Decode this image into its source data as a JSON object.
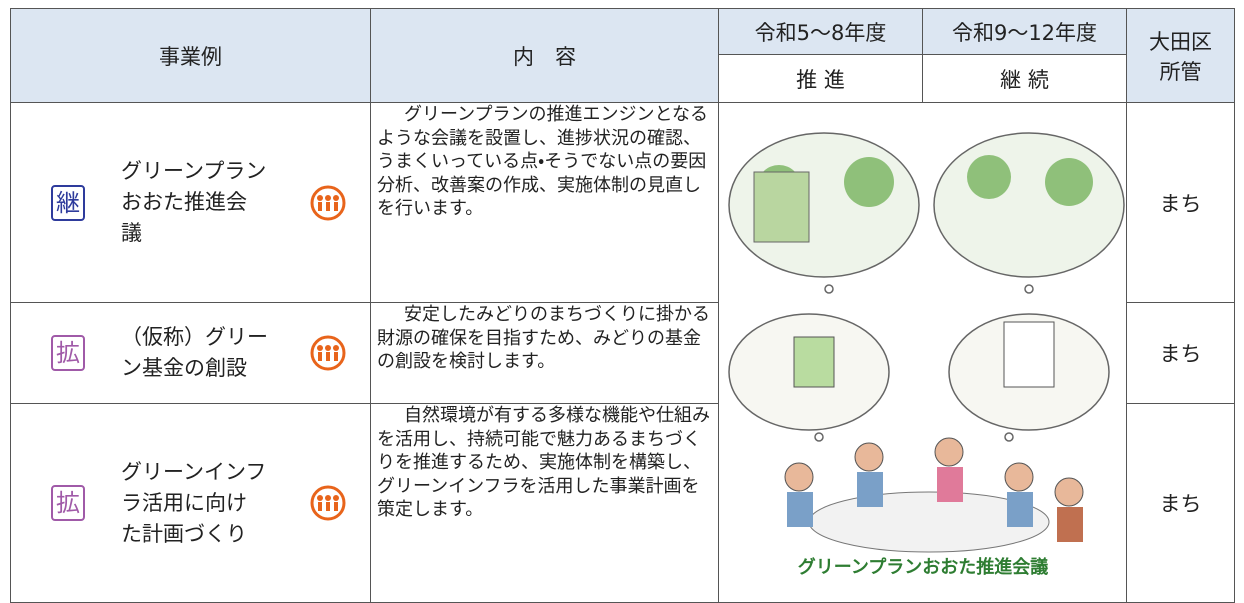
{
  "table": {
    "headers": {
      "example": "事業例",
      "content": "内　容",
      "period1": "令和5～8年度",
      "period2": "令和9～12年度",
      "plan1": "推 進",
      "plan2": "継 続",
      "dept": "大田区\n所管"
    },
    "rows": [
      {
        "badge": "継",
        "name": "グリーンプラン\nおおた推進会\n議",
        "content": "グリーンプランの推進エンジンとなるような会議を設置し、進捗状況の確認、うまくいっている点・そうでない点の要因分析、改善案の作成、実施体制の見直しを行います。",
        "dept": "まち"
      },
      {
        "badge": "拡",
        "name": "（仮称）グリー\nン基金の創設",
        "content": "安定したみどりのまちづくりに掛かる財源の確保を目指すため、みどりの基金の創設を検討します。",
        "dept": "まち"
      },
      {
        "badge": "拡",
        "name": "グリーンインフ\nラ活用に向け\nた計画づくり",
        "content": "自然環境が有する多様な機能や仕組みを活用し、持続可能で魅力あるまちづくりを推進するため、実施体制を構築し、グリーンインフラを活用した事業計画を策定します。",
        "dept": "まち"
      }
    ],
    "illustration_caption": "グリーンプランおおた推進会議"
  }
}
